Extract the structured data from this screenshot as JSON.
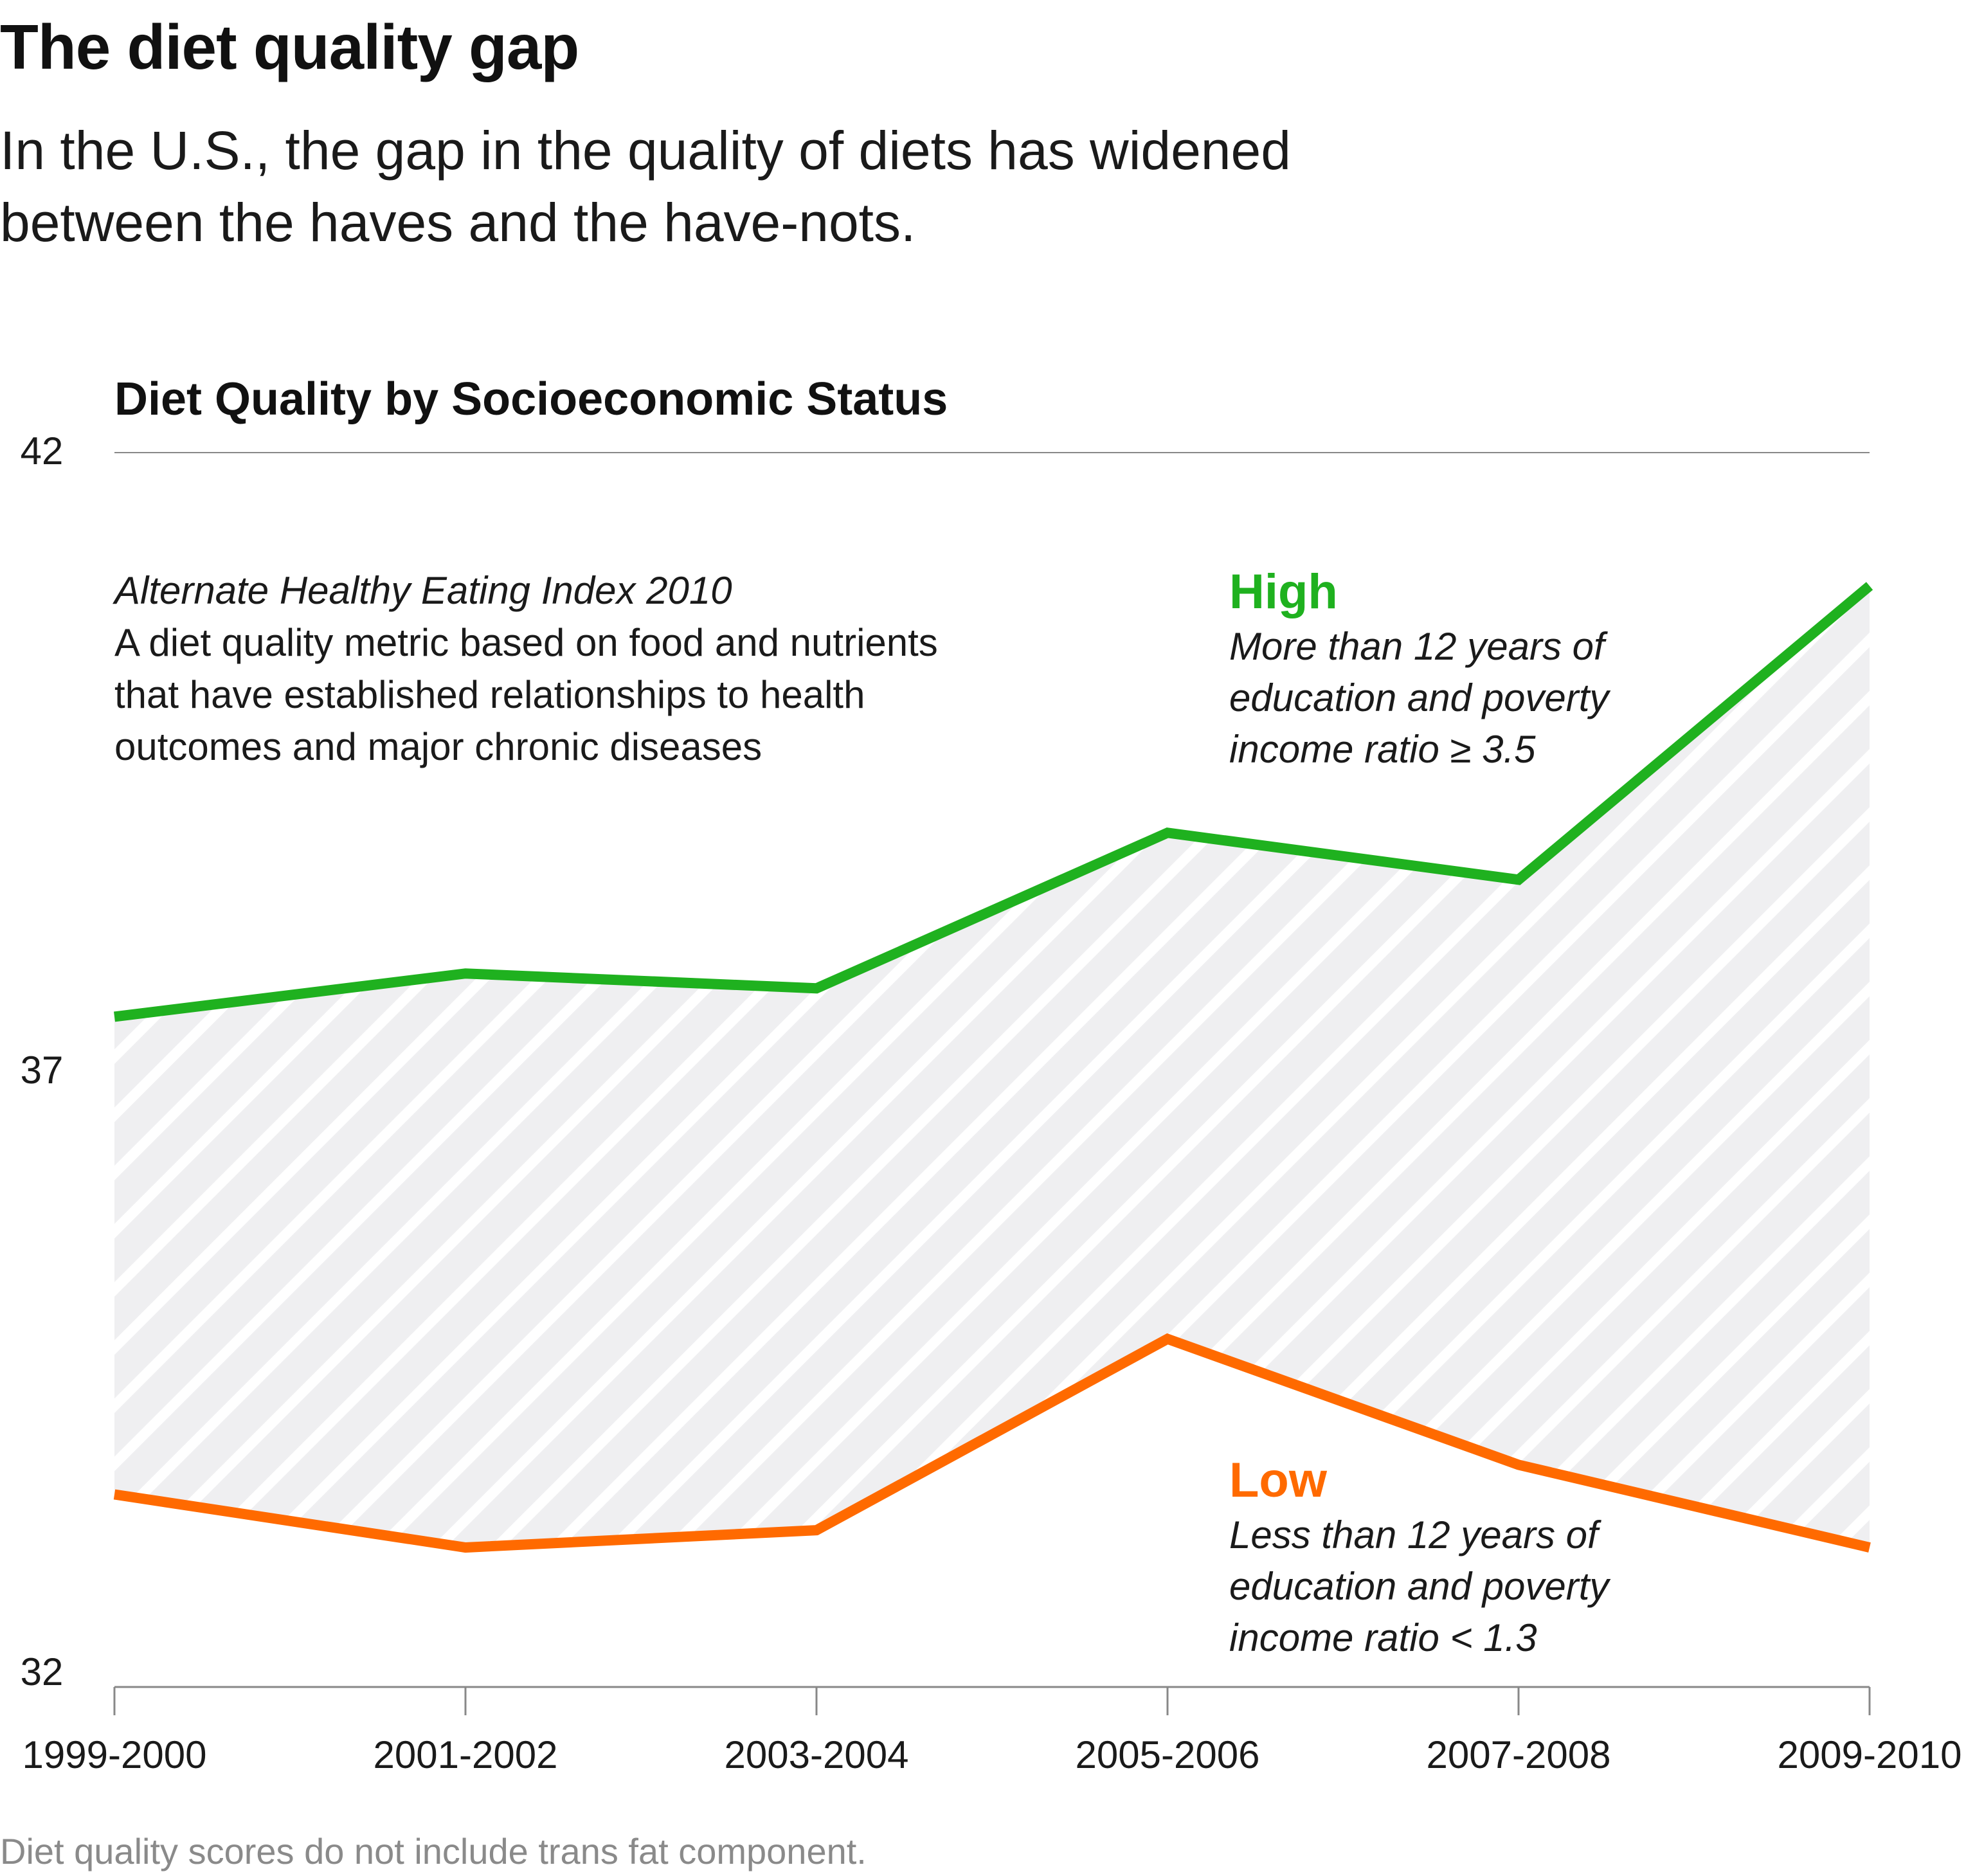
{
  "headline": "The diet quality gap",
  "subhead": "In the U.S., the gap in the quality of diets has widened between the haves and the have-nots.",
  "description": {
    "title": "Alternate Healthy Eating Index 2010",
    "body": "A diet quality metric based on food and nutrients that have established relationships to health outcomes and major chronic diseases"
  },
  "footnote": "Diet quality scores do not include trans fat component.",
  "colors": {
    "high": "#1fb11f",
    "low": "#ff6a00",
    "band": "#efeff1",
    "grid": "#888888"
  },
  "chart_data": {
    "type": "line",
    "title": "Diet Quality by Socioeconomic Status",
    "xlabel": "",
    "ylabel": "",
    "categories": [
      "1999-2000",
      "2001-2002",
      "2003-2004",
      "2005-2006",
      "2007-2008",
      "2009-2010"
    ],
    "yticks": [
      "42",
      "37",
      "32"
    ],
    "ylim": [
      32,
      42
    ],
    "grid": true,
    "shaded_gap": true,
    "series": [
      {
        "key": "high",
        "name": "High",
        "note": "More than 12 years of education and poverty income ratio ≥ 3.5",
        "values": [
          37.43,
          37.78,
          37.66,
          38.92,
          38.54,
          40.92
        ]
      },
      {
        "key": "low",
        "name": "Low",
        "note": "Less than 12 years of education and poverty income ratio < 1.3",
        "values": [
          33.56,
          33.13,
          33.27,
          34.82,
          33.8,
          33.13
        ]
      }
    ]
  }
}
